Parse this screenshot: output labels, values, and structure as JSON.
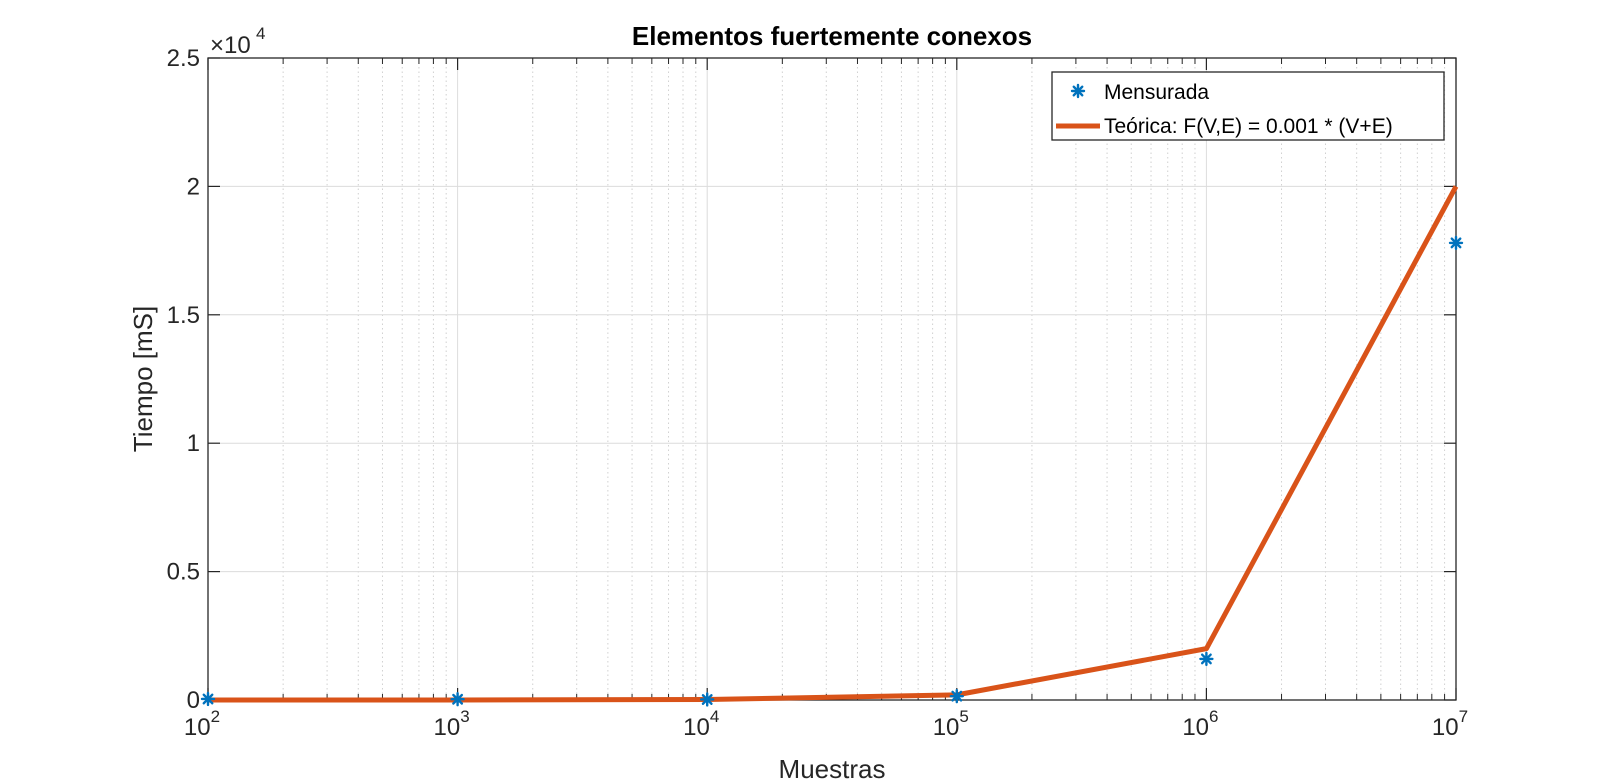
{
  "chart_data": {
    "type": "line",
    "title": "Elementos fuertemente conexos",
    "xlabel": "Muestras",
    "ylabel": "Tiempo [mS]",
    "x_scale": "log",
    "xlim": [
      100,
      10000000
    ],
    "ylim": [
      0,
      25000
    ],
    "y_multiplier": {
      "base": "×10",
      "exponent": "4"
    },
    "x_ticks": [
      {
        "base": "10",
        "exp": "2",
        "value": 100
      },
      {
        "base": "10",
        "exp": "3",
        "value": 1000
      },
      {
        "base": "10",
        "exp": "4",
        "value": 10000
      },
      {
        "base": "10",
        "exp": "5",
        "value": 100000
      },
      {
        "base": "10",
        "exp": "6",
        "value": 1000000
      },
      {
        "base": "10",
        "exp": "7",
        "value": 10000000
      }
    ],
    "y_ticks": [
      {
        "label": "0",
        "value": 0
      },
      {
        "label": "0.5",
        "value": 5000
      },
      {
        "label": "1",
        "value": 10000
      },
      {
        "label": "1.5",
        "value": 15000
      },
      {
        "label": "2",
        "value": 20000
      },
      {
        "label": "2.5",
        "value": 25000
      }
    ],
    "grid": true,
    "legend_position": "top-right",
    "series": [
      {
        "name": "Mensurada",
        "kind": "scatter",
        "marker": "asterisk",
        "color": "#0072BD",
        "x": [
          100,
          1000,
          10000,
          100000,
          1000000,
          10000000
        ],
        "y": [
          40,
          30,
          20,
          150,
          1600,
          17800
        ]
      },
      {
        "name": "Teórica: F(V,E) = 0.001 * (V+E)",
        "kind": "line",
        "color": "#D95319",
        "x": [
          100,
          1000,
          10000,
          100000,
          1000000,
          10000000
        ],
        "y": [
          0.2,
          2,
          20,
          200,
          2000,
          20000
        ]
      }
    ]
  }
}
